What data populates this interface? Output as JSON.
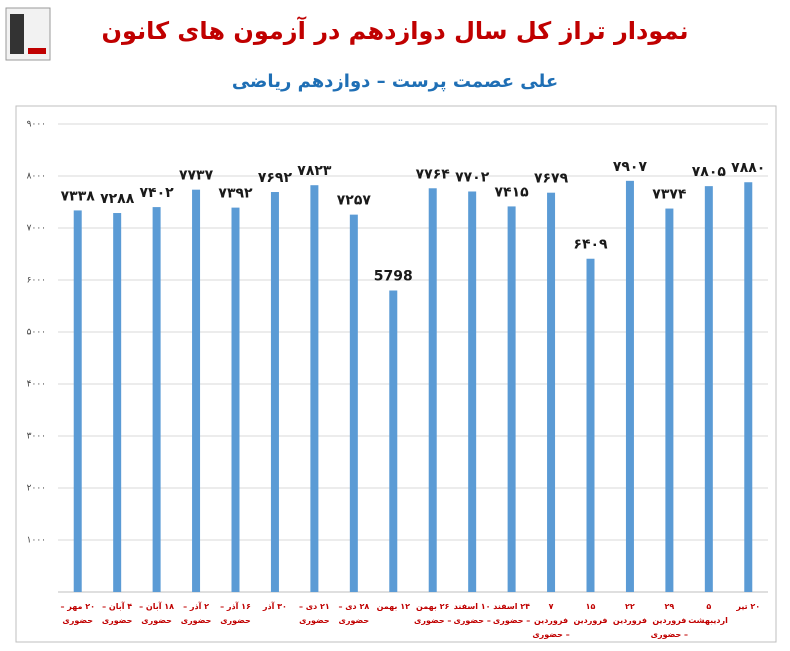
{
  "chart_data": {
    "type": "bar",
    "title": "نمودار تراز کل سال دوازدهم در آزمون های کانون",
    "subtitle": "علی عصمت پرست – دوازدهم ریاضی",
    "categories": [
      "۲۰ مهر – حضوری",
      "۴ آبان – حضوری",
      "۱۸ آبان – حضوری",
      "۲ آذر – حضوری",
      "۱۶ آذر – حضوری",
      "۳۰ آذر",
      "۲۱ دی – حضوری",
      "۲۸ دی – حضوری",
      "۱۲ بهمن",
      "۲۶ بهمن – حضوری",
      "۱۰ اسفند – حضوری",
      "۲۴ اسفند – حضوری",
      "۷ فروردین – حضوری",
      "۱۵ فروردین",
      "۲۲ فروردین",
      "۲۹ فروردین – حضوری",
      "۵ اردیبهشت",
      "۲۰ تیر"
    ],
    "values": [
      7338,
      7288,
      7402,
      7737,
      7392,
      7692,
      7823,
      7257,
      5798,
      7764,
      7702,
      7415,
      7679,
      6409,
      7907,
      7374,
      7805,
      7880
    ],
    "value_labels": [
      "۷۳۳۸",
      "۷۲۸۸",
      "۷۴۰۲",
      "۷۷۳۷",
      "۷۳۹۲",
      "۷۶۹۲",
      "۷۸۲۳",
      "۷۲۵۷",
      "5798",
      "۷۷۶۴",
      "۷۷۰۲",
      "۷۴۱۵",
      "۷۶۷۹",
      "۶۴۰۹",
      "۷۹۰۷",
      "۷۳۷۴",
      "۷۸۰۵",
      "۷۸۸۰"
    ],
    "color": "#5b9bd5",
    "ylim": [
      0,
      9000
    ],
    "yticks": [
      {
        "value": 1000,
        "label": "۱۰۰۰"
      },
      {
        "value": 2000,
        "label": "۲۰۰۰"
      },
      {
        "value": 3000,
        "label": "۳۰۰۰"
      },
      {
        "value": 4000,
        "label": "۴۰۰۰"
      },
      {
        "value": 5000,
        "label": "۵۰۰۰"
      },
      {
        "value": 6000,
        "label": "۶۰۰۰"
      },
      {
        "value": 7000,
        "label": "۷۰۰۰"
      },
      {
        "value": 8000,
        "label": "۸۰۰۰"
      },
      {
        "value": 9000,
        "label": "۹۰۰۰"
      }
    ],
    "grid": true
  }
}
